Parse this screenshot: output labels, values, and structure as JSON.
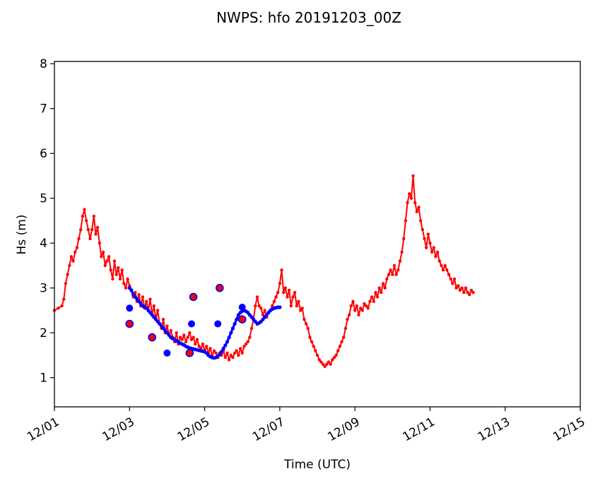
{
  "chart_data": {
    "type": "line",
    "title": "NWPS: hfo 20191203_00Z",
    "xlabel": "Time (UTC)",
    "ylabel": "Hs (m)",
    "xlim": [
      "12/01",
      "12/15"
    ],
    "ylim": [
      0.35,
      8.05
    ],
    "x_ticks": [
      "12/01",
      "12/03",
      "12/05",
      "12/07",
      "12/09",
      "12/11",
      "12/13",
      "12/15"
    ],
    "y_ticks": [
      1,
      2,
      3,
      4,
      5,
      6,
      7,
      8
    ],
    "grid": false,
    "legend": "none",
    "series": [
      {
        "color": "#ff0000",
        "marker": "small-dot",
        "x_unit": "days since 12/01 00Z",
        "points": [
          [
            0.0,
            2.5
          ],
          [
            0.1,
            2.55
          ],
          [
            0.2,
            2.6
          ],
          [
            0.25,
            2.75
          ],
          [
            0.3,
            3.1
          ],
          [
            0.35,
            3.3
          ],
          [
            0.4,
            3.5
          ],
          [
            0.45,
            3.7
          ],
          [
            0.5,
            3.6
          ],
          [
            0.55,
            3.8
          ],
          [
            0.6,
            3.9
          ],
          [
            0.65,
            4.1
          ],
          [
            0.7,
            4.3
          ],
          [
            0.75,
            4.6
          ],
          [
            0.8,
            4.75
          ],
          [
            0.85,
            4.5
          ],
          [
            0.9,
            4.3
          ],
          [
            0.95,
            4.1
          ],
          [
            1.0,
            4.3
          ],
          [
            1.05,
            4.6
          ],
          [
            1.1,
            4.2
          ],
          [
            1.15,
            4.35
          ],
          [
            1.2,
            4.0
          ],
          [
            1.25,
            3.7
          ],
          [
            1.3,
            3.8
          ],
          [
            1.35,
            3.5
          ],
          [
            1.4,
            3.6
          ],
          [
            1.45,
            3.7
          ],
          [
            1.5,
            3.4
          ],
          [
            1.55,
            3.2
          ],
          [
            1.6,
            3.6
          ],
          [
            1.65,
            3.3
          ],
          [
            1.7,
            3.45
          ],
          [
            1.75,
            3.2
          ],
          [
            1.8,
            3.4
          ],
          [
            1.85,
            3.1
          ],
          [
            1.9,
            3.0
          ],
          [
            1.95,
            3.2
          ],
          [
            2.0,
            3.05
          ],
          [
            2.05,
            2.95
          ],
          [
            2.1,
            2.8
          ],
          [
            2.15,
            2.9
          ],
          [
            2.2,
            2.7
          ],
          [
            2.25,
            2.85
          ],
          [
            2.3,
            2.6
          ],
          [
            2.35,
            2.8
          ],
          [
            2.4,
            2.55
          ],
          [
            2.45,
            2.7
          ],
          [
            2.5,
            2.5
          ],
          [
            2.55,
            2.75
          ],
          [
            2.6,
            2.4
          ],
          [
            2.65,
            2.6
          ],
          [
            2.7,
            2.3
          ],
          [
            2.75,
            2.5
          ],
          [
            2.8,
            2.2
          ],
          [
            2.85,
            2.1
          ],
          [
            2.9,
            2.3
          ],
          [
            2.95,
            2.0
          ],
          [
            3.0,
            2.15
          ],
          [
            3.05,
            1.95
          ],
          [
            3.1,
            2.05
          ],
          [
            3.15,
            1.9
          ],
          [
            3.2,
            1.8
          ],
          [
            3.25,
            2.0
          ],
          [
            3.3,
            1.75
          ],
          [
            3.35,
            1.9
          ],
          [
            3.4,
            1.85
          ],
          [
            3.45,
            1.95
          ],
          [
            3.5,
            1.8
          ],
          [
            3.55,
            1.9
          ],
          [
            3.6,
            2.0
          ],
          [
            3.65,
            1.85
          ],
          [
            3.7,
            1.9
          ],
          [
            3.75,
            1.75
          ],
          [
            3.8,
            1.85
          ],
          [
            3.85,
            1.7
          ],
          [
            3.9,
            1.65
          ],
          [
            3.95,
            1.75
          ],
          [
            4.0,
            1.6
          ],
          [
            4.05,
            1.7
          ],
          [
            4.1,
            1.55
          ],
          [
            4.15,
            1.65
          ],
          [
            4.2,
            1.5
          ],
          [
            4.25,
            1.6
          ],
          [
            4.3,
            1.55
          ],
          [
            4.35,
            1.45
          ],
          [
            4.4,
            1.55
          ],
          [
            4.45,
            1.5
          ],
          [
            4.5,
            1.6
          ],
          [
            4.55,
            1.45
          ],
          [
            4.6,
            1.55
          ],
          [
            4.65,
            1.4
          ],
          [
            4.7,
            1.5
          ],
          [
            4.75,
            1.45
          ],
          [
            4.8,
            1.55
          ],
          [
            4.85,
            1.6
          ],
          [
            4.9,
            1.5
          ],
          [
            4.95,
            1.65
          ],
          [
            5.0,
            1.55
          ],
          [
            5.05,
            1.7
          ],
          [
            5.1,
            1.75
          ],
          [
            5.15,
            1.8
          ],
          [
            5.2,
            1.9
          ],
          [
            5.25,
            2.1
          ],
          [
            5.3,
            2.3
          ],
          [
            5.35,
            2.6
          ],
          [
            5.4,
            2.8
          ],
          [
            5.45,
            2.6
          ],
          [
            5.5,
            2.55
          ],
          [
            5.55,
            2.4
          ],
          [
            5.6,
            2.5
          ],
          [
            5.65,
            2.35
          ],
          [
            5.7,
            2.45
          ],
          [
            5.75,
            2.5
          ],
          [
            5.8,
            2.6
          ],
          [
            5.85,
            2.7
          ],
          [
            5.9,
            2.8
          ],
          [
            5.95,
            2.9
          ],
          [
            6.0,
            3.1
          ],
          [
            6.05,
            3.4
          ],
          [
            6.1,
            2.9
          ],
          [
            6.15,
            3.0
          ],
          [
            6.2,
            2.8
          ],
          [
            6.25,
            2.95
          ],
          [
            6.3,
            2.6
          ],
          [
            6.35,
            2.8
          ],
          [
            6.4,
            2.9
          ],
          [
            6.45,
            2.6
          ],
          [
            6.5,
            2.7
          ],
          [
            6.55,
            2.5
          ],
          [
            6.6,
            2.55
          ],
          [
            6.65,
            2.3
          ],
          [
            6.7,
            2.2
          ],
          [
            6.75,
            2.1
          ],
          [
            6.8,
            1.9
          ],
          [
            6.85,
            1.8
          ],
          [
            6.9,
            1.7
          ],
          [
            6.95,
            1.6
          ],
          [
            7.0,
            1.5
          ],
          [
            7.05,
            1.4
          ],
          [
            7.1,
            1.35
          ],
          [
            7.15,
            1.3
          ],
          [
            7.2,
            1.25
          ],
          [
            7.25,
            1.3
          ],
          [
            7.3,
            1.35
          ],
          [
            7.35,
            1.3
          ],
          [
            7.4,
            1.4
          ],
          [
            7.45,
            1.45
          ],
          [
            7.5,
            1.5
          ],
          [
            7.55,
            1.6
          ],
          [
            7.6,
            1.7
          ],
          [
            7.65,
            1.8
          ],
          [
            7.7,
            1.9
          ],
          [
            7.75,
            2.1
          ],
          [
            7.8,
            2.3
          ],
          [
            7.85,
            2.4
          ],
          [
            7.9,
            2.6
          ],
          [
            7.95,
            2.7
          ],
          [
            8.0,
            2.5
          ],
          [
            8.05,
            2.6
          ],
          [
            8.1,
            2.4
          ],
          [
            8.15,
            2.55
          ],
          [
            8.2,
            2.5
          ],
          [
            8.25,
            2.65
          ],
          [
            8.3,
            2.6
          ],
          [
            8.35,
            2.55
          ],
          [
            8.4,
            2.7
          ],
          [
            8.45,
            2.8
          ],
          [
            8.5,
            2.7
          ],
          [
            8.55,
            2.9
          ],
          [
            8.6,
            2.8
          ],
          [
            8.65,
            3.0
          ],
          [
            8.7,
            2.9
          ],
          [
            8.75,
            3.1
          ],
          [
            8.8,
            3.0
          ],
          [
            8.85,
            3.2
          ],
          [
            8.9,
            3.3
          ],
          [
            8.95,
            3.4
          ],
          [
            9.0,
            3.3
          ],
          [
            9.05,
            3.5
          ],
          [
            9.1,
            3.3
          ],
          [
            9.15,
            3.4
          ],
          [
            9.2,
            3.6
          ],
          [
            9.25,
            3.8
          ],
          [
            9.3,
            4.1
          ],
          [
            9.35,
            4.5
          ],
          [
            9.4,
            4.9
          ],
          [
            9.45,
            5.1
          ],
          [
            9.5,
            5.0
          ],
          [
            9.55,
            5.5
          ],
          [
            9.6,
            4.9
          ],
          [
            9.65,
            4.7
          ],
          [
            9.7,
            4.8
          ],
          [
            9.75,
            4.5
          ],
          [
            9.8,
            4.3
          ],
          [
            9.85,
            4.1
          ],
          [
            9.9,
            3.9
          ],
          [
            9.95,
            4.2
          ],
          [
            10.0,
            4.0
          ],
          [
            10.05,
            3.8
          ],
          [
            10.1,
            3.9
          ],
          [
            10.15,
            3.7
          ],
          [
            10.2,
            3.8
          ],
          [
            10.25,
            3.6
          ],
          [
            10.3,
            3.5
          ],
          [
            10.35,
            3.4
          ],
          [
            10.4,
            3.5
          ],
          [
            10.45,
            3.4
          ],
          [
            10.5,
            3.3
          ],
          [
            10.55,
            3.2
          ],
          [
            10.6,
            3.1
          ],
          [
            10.65,
            3.2
          ],
          [
            10.7,
            3.0
          ],
          [
            10.75,
            3.05
          ],
          [
            10.8,
            2.95
          ],
          [
            10.85,
            3.0
          ],
          [
            10.9,
            2.9
          ],
          [
            10.95,
            3.0
          ],
          [
            11.0,
            2.9
          ],
          [
            11.05,
            2.85
          ],
          [
            11.1,
            2.95
          ],
          [
            11.15,
            2.9
          ]
        ]
      },
      {
        "color": "#0000ff",
        "marker": "dot",
        "x_unit": "days since 12/01 00Z",
        "points": [
          [
            2.0,
            3.0
          ],
          [
            2.05,
            2.95
          ],
          [
            2.1,
            2.85
          ],
          [
            2.15,
            2.8
          ],
          [
            2.2,
            2.75
          ],
          [
            2.25,
            2.7
          ],
          [
            2.3,
            2.65
          ],
          [
            2.35,
            2.6
          ],
          [
            2.4,
            2.58
          ],
          [
            2.45,
            2.55
          ],
          [
            2.5,
            2.5
          ],
          [
            2.55,
            2.45
          ],
          [
            2.6,
            2.4
          ],
          [
            2.65,
            2.35
          ],
          [
            2.7,
            2.3
          ],
          [
            2.75,
            2.25
          ],
          [
            2.8,
            2.2
          ],
          [
            2.85,
            2.15
          ],
          [
            2.9,
            2.1
          ],
          [
            2.95,
            2.05
          ],
          [
            3.0,
            2.0
          ],
          [
            3.05,
            1.95
          ],
          [
            3.1,
            1.9
          ],
          [
            3.15,
            1.87
          ],
          [
            3.2,
            1.85
          ],
          [
            3.25,
            1.82
          ],
          [
            3.3,
            1.8
          ],
          [
            3.35,
            1.77
          ],
          [
            3.4,
            1.75
          ],
          [
            3.45,
            1.73
          ],
          [
            3.5,
            1.7
          ],
          [
            3.55,
            1.68
          ],
          [
            3.6,
            1.66
          ],
          [
            3.65,
            1.65
          ],
          [
            3.7,
            1.64
          ],
          [
            3.75,
            1.63
          ],
          [
            3.8,
            1.62
          ],
          [
            3.85,
            1.61
          ],
          [
            3.9,
            1.6
          ],
          [
            3.95,
            1.59
          ],
          [
            4.0,
            1.58
          ],
          [
            4.05,
            1.55
          ],
          [
            4.1,
            1.5
          ],
          [
            4.15,
            1.47
          ],
          [
            4.2,
            1.45
          ],
          [
            4.25,
            1.44
          ],
          [
            4.3,
            1.45
          ],
          [
            4.35,
            1.48
          ],
          [
            4.4,
            1.52
          ],
          [
            4.45,
            1.58
          ],
          [
            4.5,
            1.65
          ],
          [
            4.55,
            1.72
          ],
          [
            4.6,
            1.8
          ],
          [
            4.65,
            1.9
          ],
          [
            4.7,
            2.0
          ],
          [
            4.75,
            2.1
          ],
          [
            4.8,
            2.2
          ],
          [
            4.85,
            2.3
          ],
          [
            4.9,
            2.4
          ],
          [
            4.95,
            2.45
          ],
          [
            5.0,
            2.48
          ],
          [
            5.05,
            2.5
          ],
          [
            5.1,
            2.48
          ],
          [
            5.15,
            2.45
          ],
          [
            5.2,
            2.4
          ],
          [
            5.25,
            2.35
          ],
          [
            5.3,
            2.3
          ],
          [
            5.35,
            2.25
          ],
          [
            5.4,
            2.2
          ],
          [
            5.45,
            2.22
          ],
          [
            5.5,
            2.25
          ],
          [
            5.55,
            2.3
          ],
          [
            5.6,
            2.35
          ],
          [
            5.65,
            2.4
          ],
          [
            5.7,
            2.45
          ],
          [
            5.75,
            2.5
          ],
          [
            5.8,
            2.53
          ],
          [
            5.85,
            2.55
          ],
          [
            5.9,
            2.56
          ],
          [
            5.95,
            2.57
          ],
          [
            6.0,
            2.57
          ]
        ],
        "large_markers": [
          [
            2.0,
            2.55
          ],
          [
            2.0,
            2.2
          ],
          [
            2.6,
            1.9
          ],
          [
            3.0,
            1.55
          ],
          [
            3.6,
            1.55
          ],
          [
            3.65,
            2.2
          ],
          [
            3.7,
            2.8
          ],
          [
            4.35,
            2.2
          ],
          [
            4.4,
            3.0
          ],
          [
            5.0,
            2.57
          ]
        ]
      }
    ],
    "open_circle_markers": {
      "edge_color": "#0000ff",
      "face_color": "#ff0000",
      "x_unit": "days since 12/01 00Z",
      "points": [
        [
          2.0,
          2.2
        ],
        [
          2.6,
          1.9
        ],
        [
          3.6,
          1.55
        ],
        [
          3.7,
          2.8
        ],
        [
          4.4,
          3.0
        ],
        [
          5.0,
          2.3
        ]
      ]
    }
  }
}
